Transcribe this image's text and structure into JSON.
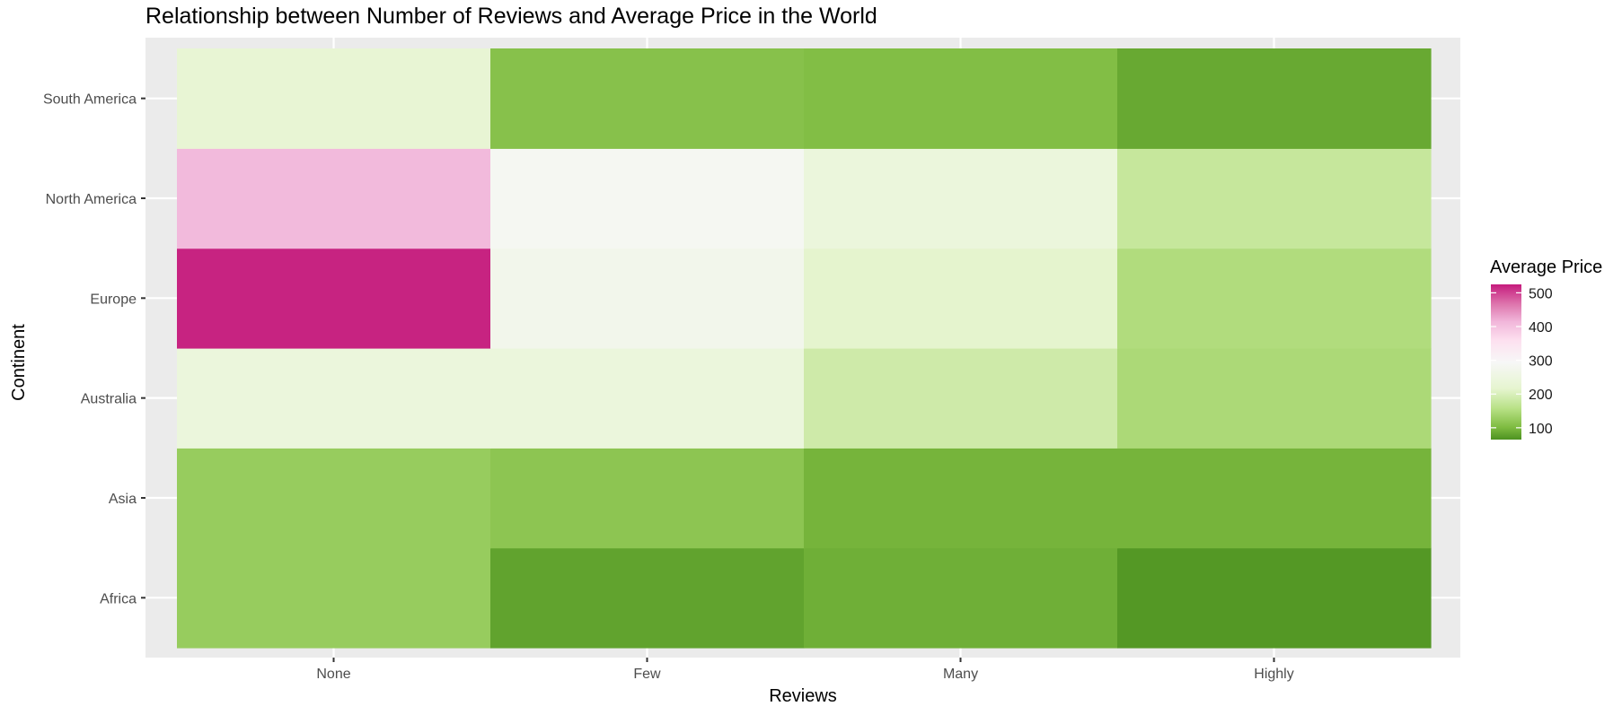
{
  "chart_data": {
    "type": "heatmap",
    "title": "Relationship between Number of Reviews and Average Price in the World",
    "xlabel": "Reviews",
    "ylabel": "Continent",
    "x_categories": [
      "None",
      "Few",
      "Many",
      "Highly"
    ],
    "y_categories": [
      "Africa",
      "Asia",
      "Australia",
      "Europe",
      "North America",
      "South America"
    ],
    "values": [
      [
        125,
        80,
        90,
        70
      ],
      [
        125,
        115,
        95,
        95
      ],
      [
        240,
        240,
        185,
        145
      ],
      [
        520,
        270,
        215,
        150
      ],
      [
        410,
        285,
        240,
        175
      ],
      [
        225,
        110,
        105,
        85
      ]
    ],
    "grid": true,
    "legend": {
      "title": "Average Price",
      "position": "right",
      "ticks": [
        100,
        200,
        300,
        400,
        500
      ],
      "range": [
        65,
        525
      ],
      "colors": [
        "#4d9221",
        "#7fbc41",
        "#b8e186",
        "#e6f5d0",
        "#f7f7f7",
        "#fde0ef",
        "#f1b6da",
        "#de77ae",
        "#c51b7d"
      ],
      "color_positions": [
        0,
        0.08,
        0.2,
        0.33,
        0.5,
        0.64,
        0.76,
        0.87,
        1.0
      ]
    },
    "colors": {
      "panel_background": "#ebebeb",
      "gridline": "#ffffff",
      "tick_label": "#4d4d4d",
      "tick_mark": "#333333"
    }
  }
}
